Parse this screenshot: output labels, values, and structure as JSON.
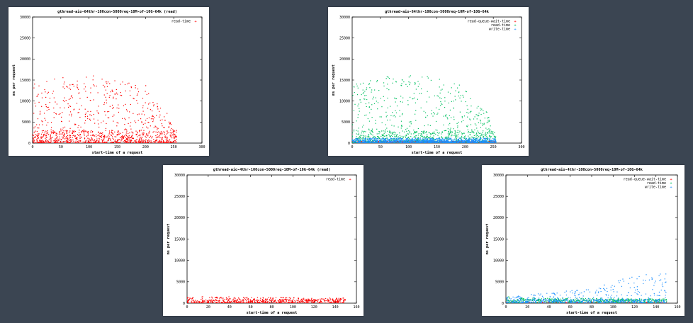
{
  "chart_data": [
    {
      "type": "scatter",
      "title": "gthread-aio-64thr-100con-5000req-10M-of-10G-64k (read)",
      "xlabel": "start-time of a request",
      "ylabel": "ms per request",
      "xlim": [
        0,
        300
      ],
      "ylim": [
        0,
        30000
      ],
      "xticks": [
        "0",
        "50",
        "100",
        "150",
        "200",
        "250",
        "300"
      ],
      "yticks": [
        "0",
        "5000",
        "10000",
        "15000",
        "20000",
        "25000",
        "30000"
      ],
      "legend": "top-right",
      "series": [
        {
          "name": "read-time",
          "color": "#ff0000",
          "profile": {
            "x_end": 255,
            "dense_max": 3000,
            "upper_band": [
              [
                0,
                14000
              ],
              [
                50,
                16000
              ],
              [
                100,
                16500
              ],
              [
                150,
                15500
              ],
              [
                200,
                14000
              ],
              [
                215,
                10000
              ],
              [
                240,
                7500
              ],
              [
                255,
                0
              ]
            ]
          }
        }
      ]
    },
    {
      "type": "scatter",
      "title": "gthread-aio-64thr-100con-5000req-10M-of-10G-64k",
      "xlabel": "start-time of a request",
      "ylabel": "ms per request",
      "xlim": [
        0,
        300
      ],
      "ylim": [
        0,
        30000
      ],
      "xticks": [
        "0",
        "50",
        "100",
        "150",
        "200",
        "250",
        "300"
      ],
      "yticks": [
        "0",
        "5000",
        "10000",
        "15000",
        "20000",
        "25000",
        "30000"
      ],
      "legend": "top-right",
      "series": [
        {
          "name": "read-queue-wait-time",
          "color": "#ff0000",
          "profile": {
            "x_end": 255,
            "dense_max": 200,
            "upper_band": [
              [
                0,
                400
              ],
              [
                255,
                400
              ]
            ]
          }
        },
        {
          "name": "read-time",
          "color": "#00c060",
          "profile": {
            "x_end": 255,
            "dense_max": 3000,
            "upper_band": [
              [
                0,
                14000
              ],
              [
                50,
                16000
              ],
              [
                100,
                16500
              ],
              [
                150,
                15500
              ],
              [
                200,
                14000
              ],
              [
                215,
                10000
              ],
              [
                240,
                7500
              ],
              [
                255,
                0
              ]
            ]
          }
        },
        {
          "name": "write-time",
          "color": "#1e90ff",
          "profile": {
            "x_end": 255,
            "dense_max": 700,
            "upper_band": [
              [
                0,
                1200
              ],
              [
                255,
                1200
              ]
            ]
          }
        }
      ]
    },
    {
      "type": "scatter",
      "title": "gthread-aio-4thr-100con-5000req-10M-of-10G-64k (read)",
      "xlabel": "start-time of a request",
      "ylabel": "ms per request",
      "xlim": [
        0,
        160
      ],
      "ylim": [
        0,
        30000
      ],
      "xticks": [
        "0",
        "20",
        "40",
        "60",
        "80",
        "100",
        "120",
        "140",
        "160"
      ],
      "yticks": [
        "0",
        "5000",
        "10000",
        "15000",
        "20000",
        "25000",
        "30000"
      ],
      "legend": "top-right",
      "series": [
        {
          "name": "read-time",
          "color": "#ff0000",
          "profile": {
            "x_end": 150,
            "dense_max": 800,
            "upper_band": [
              [
                0,
                1600
              ],
              [
                150,
                1200
              ]
            ]
          }
        }
      ]
    },
    {
      "type": "scatter",
      "title": "gthread-aio-4thr-100con-5000req-10M-of-10G-64k",
      "xlabel": "start-time of a request",
      "ylabel": "ms per request",
      "xlim": [
        0,
        160
      ],
      "ylim": [
        0,
        30000
      ],
      "xticks": [
        "0",
        "20",
        "40",
        "60",
        "80",
        "100",
        "120",
        "140",
        "160"
      ],
      "yticks": [
        "0",
        "5000",
        "10000",
        "15000",
        "20000",
        "25000",
        "30000"
      ],
      "legend": "top-right",
      "series": [
        {
          "name": "read-queue-wait-time",
          "color": "#ff0000",
          "profile": {
            "x_end": 150,
            "dense_max": 100,
            "upper_band": [
              [
                0,
                200
              ],
              [
                150,
                200
              ]
            ]
          }
        },
        {
          "name": "read-time",
          "color": "#00c060",
          "profile": {
            "x_end": 150,
            "dense_max": 900,
            "upper_band": [
              [
                0,
                1600
              ],
              [
                10,
                1200
              ],
              [
                150,
                1000
              ]
            ]
          }
        },
        {
          "name": "write-time",
          "color": "#1e90ff",
          "profile": {
            "x_end": 150,
            "dense_max": 900,
            "upper_band": [
              [
                0,
                1500
              ],
              [
                80,
                3500
              ],
              [
                120,
                6500
              ],
              [
                150,
                7000
              ]
            ]
          }
        }
      ]
    }
  ]
}
